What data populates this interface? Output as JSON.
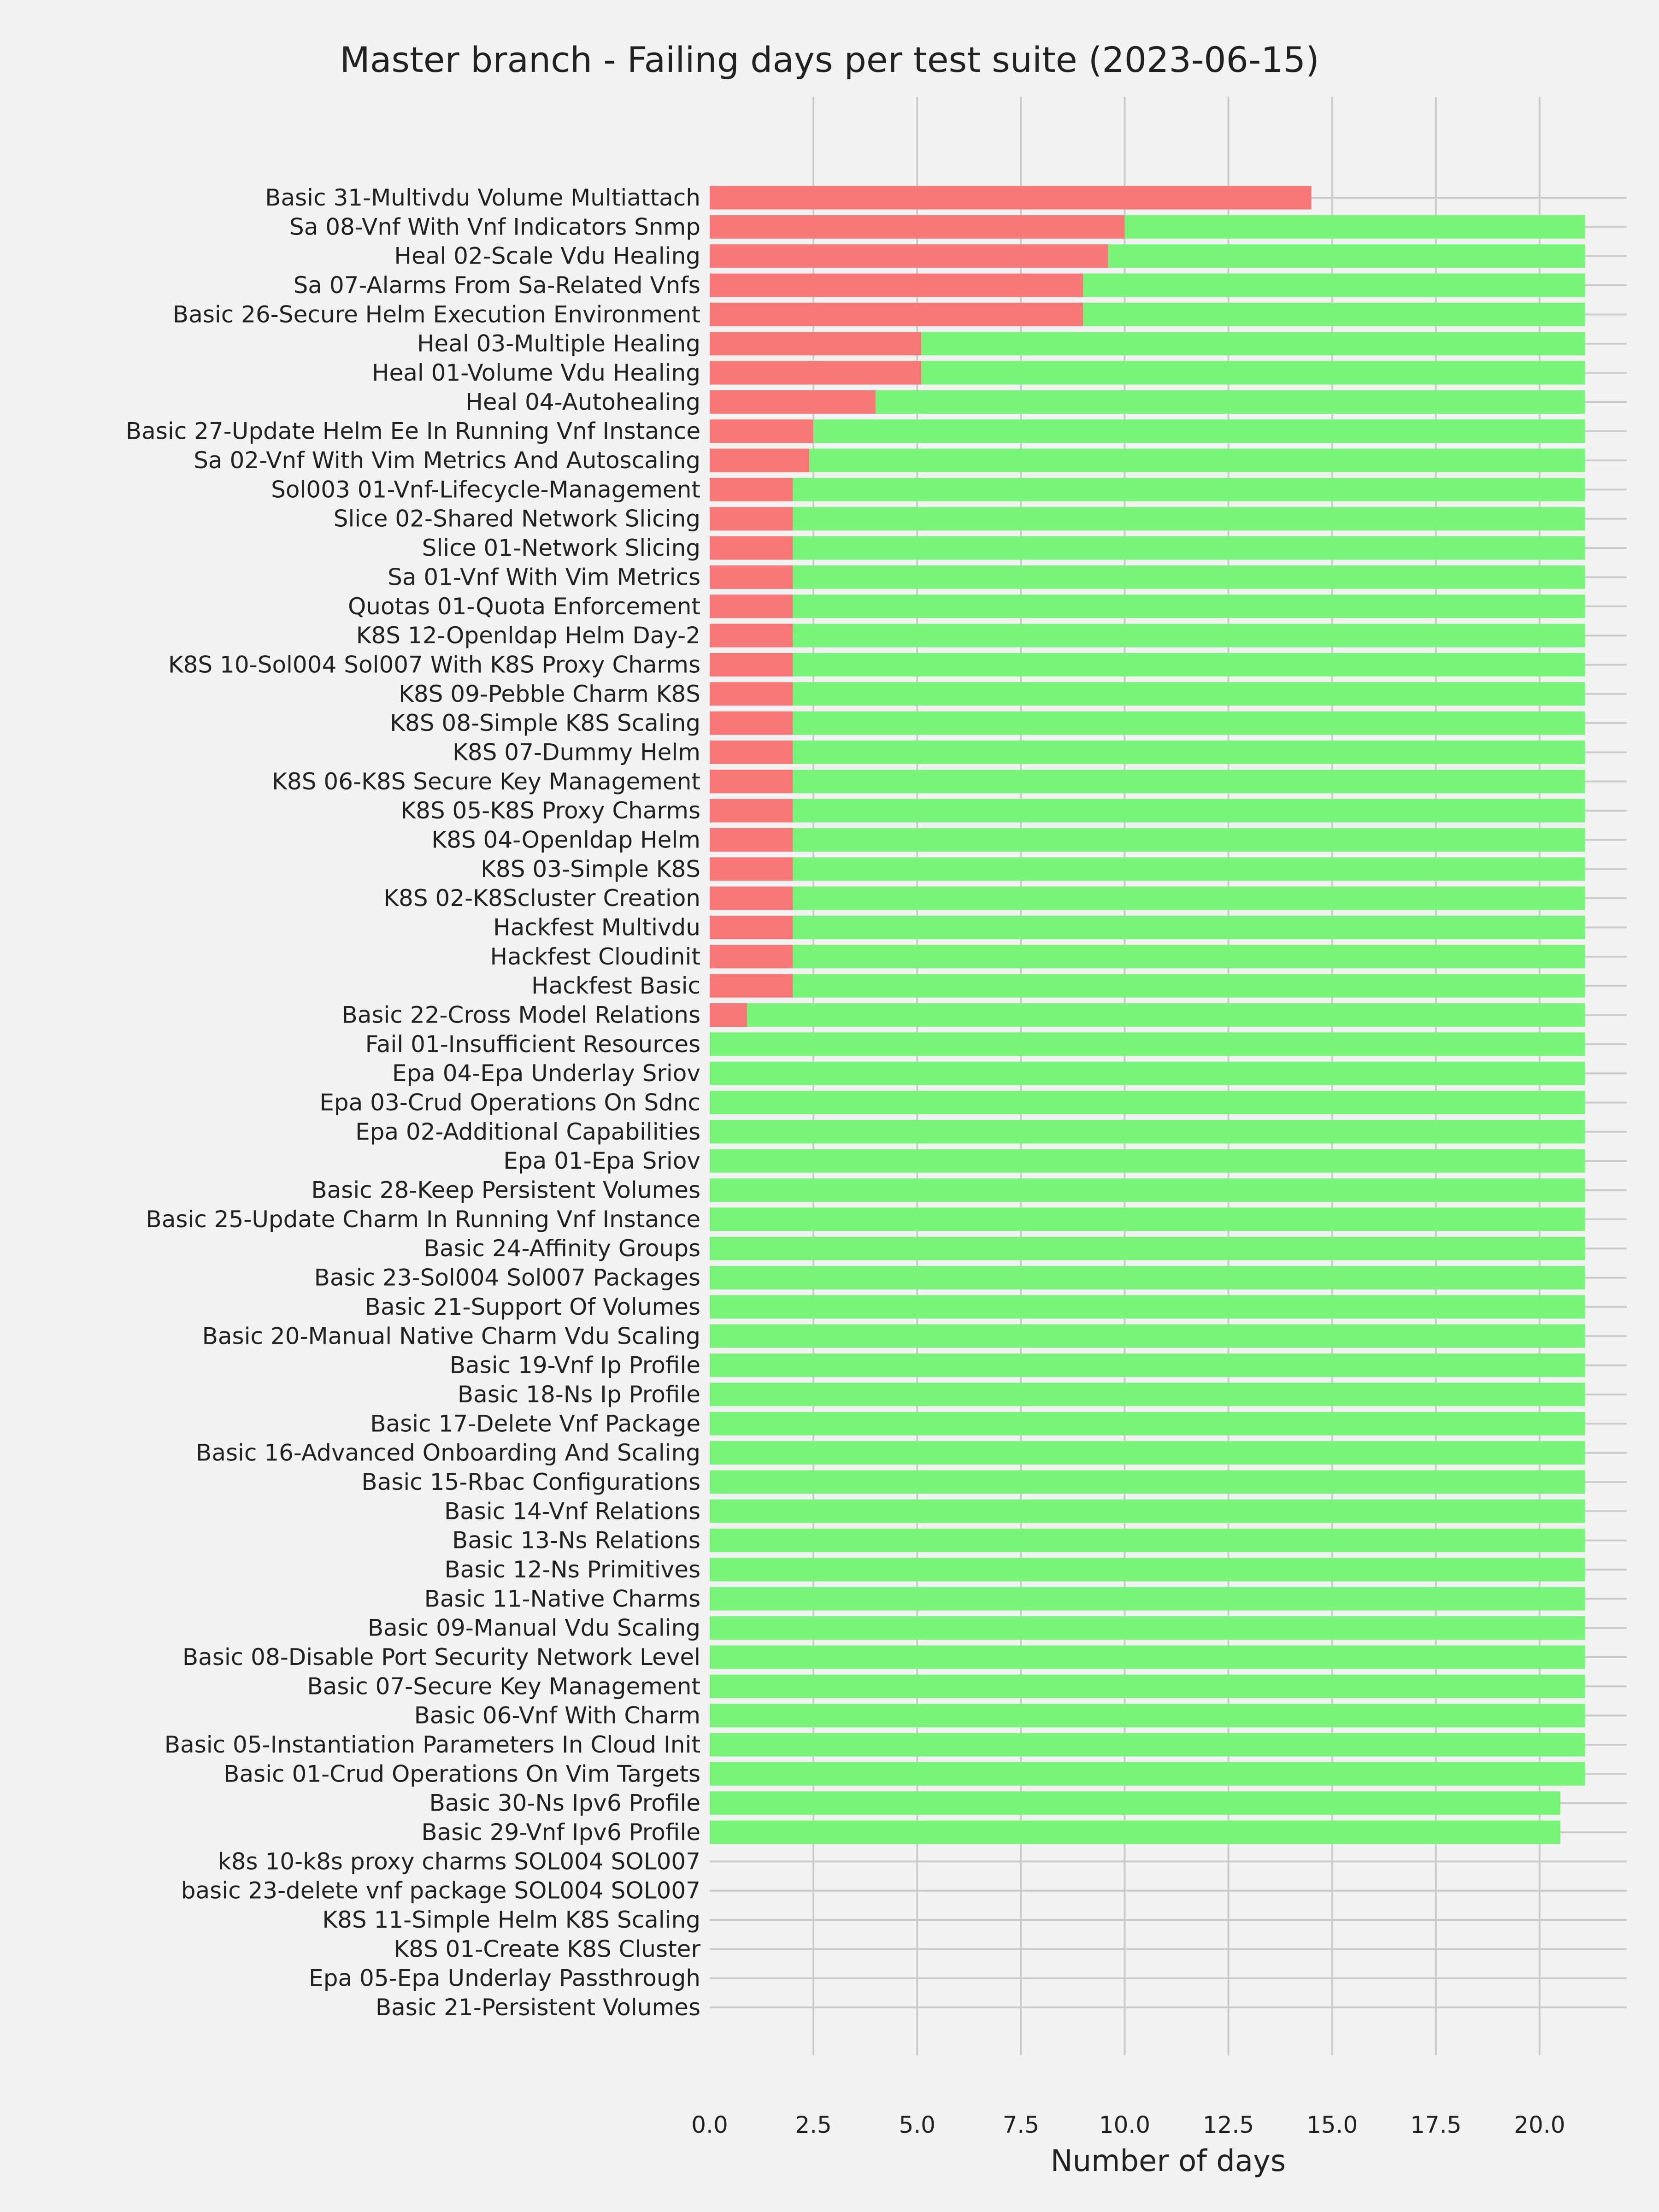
{
  "chart_data": {
    "type": "bar",
    "orientation": "horizontal",
    "stacked": true,
    "title": "Master branch - Failing days per test suite (2023-06-15)",
    "xlabel": "Number of days",
    "ylabel": "",
    "xlim": [
      0,
      22.1
    ],
    "xticks": [
      "0.0",
      "2.5",
      "5.0",
      "7.5",
      "10.0",
      "12.5",
      "15.0",
      "17.5",
      "20.0"
    ],
    "grid": true,
    "colors": {
      "fail": "#f87878",
      "pass": "#78f478",
      "background": "#f2f2f2",
      "grid": "#cbcbcb"
    },
    "categories": [
      "Basic 31-Multivdu Volume Multiattach",
      "Sa 08-Vnf With Vnf Indicators Snmp",
      "Heal 02-Scale Vdu Healing",
      "Sa 07-Alarms From Sa-Related Vnfs",
      "Basic 26-Secure Helm Execution Environment",
      "Heal 03-Multiple Healing",
      "Heal 01-Volume Vdu Healing",
      "Heal 04-Autohealing",
      "Basic 27-Update Helm Ee In Running Vnf Instance",
      "Sa 02-Vnf With Vim Metrics And Autoscaling",
      "Sol003 01-Vnf-Lifecycle-Management",
      "Slice 02-Shared Network Slicing",
      "Slice 01-Network Slicing",
      "Sa 01-Vnf With Vim Metrics",
      "Quotas 01-Quota Enforcement",
      "K8S 12-Openldap Helm Day-2",
      "K8S 10-Sol004 Sol007 With K8S Proxy Charms",
      "K8S 09-Pebble Charm K8S",
      "K8S 08-Simple K8S Scaling",
      "K8S 07-Dummy Helm",
      "K8S 06-K8S Secure Key Management",
      "K8S 05-K8S Proxy Charms",
      "K8S 04-Openldap Helm",
      "K8S 03-Simple K8S",
      "K8S 02-K8Scluster Creation",
      "Hackfest Multivdu",
      "Hackfest Cloudinit",
      "Hackfest Basic",
      "Basic 22-Cross Model Relations",
      "Fail 01-Insufficient Resources",
      "Epa 04-Epa Underlay Sriov",
      "Epa 03-Crud Operations On Sdnc",
      "Epa 02-Additional Capabilities",
      "Epa 01-Epa Sriov",
      "Basic 28-Keep Persistent Volumes",
      "Basic 25-Update Charm In Running Vnf Instance",
      "Basic 24-Affinity Groups",
      "Basic 23-Sol004 Sol007 Packages",
      "Basic 21-Support Of Volumes",
      "Basic 20-Manual Native Charm Vdu Scaling",
      "Basic 19-Vnf Ip Profile",
      "Basic 18-Ns Ip Profile",
      "Basic 17-Delete Vnf Package",
      "Basic 16-Advanced Onboarding And Scaling",
      "Basic 15-Rbac Configurations",
      "Basic 14-Vnf Relations",
      "Basic 13-Ns Relations",
      "Basic 12-Ns Primitives",
      "Basic 11-Native Charms",
      "Basic 09-Manual Vdu Scaling",
      "Basic 08-Disable Port Security Network Level",
      "Basic 07-Secure Key Management",
      "Basic 06-Vnf With Charm",
      "Basic 05-Instantiation Parameters In Cloud Init",
      "Basic 01-Crud Operations On Vim Targets",
      "Basic 30-Ns Ipv6 Profile",
      "Basic 29-Vnf Ipv6 Profile",
      "k8s 10-k8s proxy charms SOL004 SOL007",
      "basic 23-delete vnf package SOL004 SOL007",
      "K8S 11-Simple Helm K8S Scaling",
      "K8S 01-Create K8S Cluster",
      "Epa 05-Epa Underlay Passthrough",
      "Basic 21-Persistent Volumes"
    ],
    "series": [
      {
        "key": "fail",
        "values": [
          14.5,
          10,
          9.6,
          9,
          9,
          5.1,
          5.1,
          4,
          2.5,
          2.4,
          2,
          2,
          2,
          2,
          2,
          2,
          2,
          2,
          2,
          2,
          2,
          2,
          2,
          2,
          2,
          2,
          2,
          2,
          0.9,
          0,
          0,
          0,
          0,
          0,
          0,
          0,
          0,
          0,
          0,
          0,
          0,
          0,
          0,
          0,
          0,
          0,
          0,
          0,
          0,
          0,
          0,
          0,
          0,
          0,
          0,
          0,
          0,
          0,
          0,
          0,
          0,
          0,
          0
        ]
      },
      {
        "key": "pass",
        "values": [
          0,
          11.1,
          11.5,
          12.1,
          12.1,
          16,
          16,
          17.1,
          18.6,
          18.7,
          19.1,
          19.1,
          19.1,
          19.1,
          19.1,
          19.1,
          19.1,
          19.1,
          19.1,
          19.1,
          19.1,
          19.1,
          19.1,
          19.1,
          19.1,
          19.1,
          19.1,
          19.1,
          20.2,
          21.1,
          21.1,
          21.1,
          21.1,
          21.1,
          21.1,
          21.1,
          21.1,
          21.1,
          21.1,
          21.1,
          21.1,
          21.1,
          21.1,
          21.1,
          21.1,
          21.1,
          21.1,
          21.1,
          21.1,
          21.1,
          21.1,
          21.1,
          21.1,
          21.1,
          21.1,
          20.5,
          20.5,
          0,
          0,
          0,
          0,
          0,
          0
        ]
      }
    ]
  }
}
